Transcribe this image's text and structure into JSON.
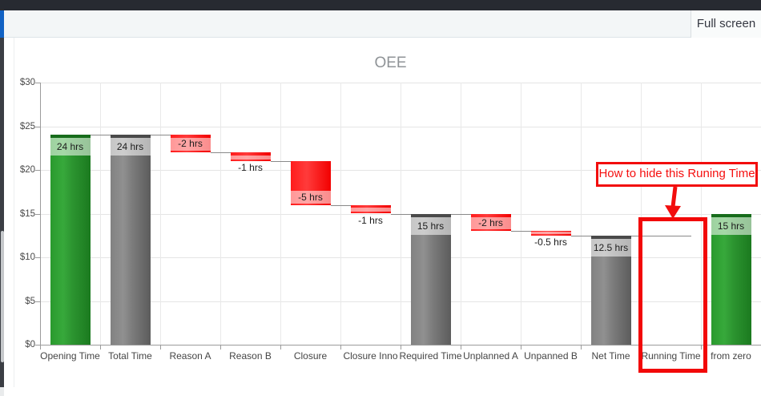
{
  "toolbar": {
    "full_screen_label": "Full screen"
  },
  "annotation": {
    "text": "How to hide this Runing Time"
  },
  "chart_data": {
    "type": "bar",
    "subtype": "waterfall",
    "title": "OEE",
    "xlabel": "",
    "ylabel": "",
    "ylim": [
      0,
      30
    ],
    "grid": true,
    "legend": "none",
    "yticks": [
      {
        "value": 0,
        "label": "$0"
      },
      {
        "value": 5,
        "label": "$5"
      },
      {
        "value": 10,
        "label": "$10"
      },
      {
        "value": 15,
        "label": "$15"
      },
      {
        "value": 20,
        "label": "$20"
      },
      {
        "value": 25,
        "label": "$25"
      },
      {
        "value": 30,
        "label": "$30"
      }
    ],
    "categories": [
      "Opening Time",
      "Total Time",
      "Reason A",
      "Reason B",
      "Closure",
      "Closure Inno",
      "Required Time",
      "Unplanned A",
      "Unpanned B",
      "Net Time",
      "Running Time",
      "from zero"
    ],
    "points": [
      {
        "name": "Opening Time",
        "from": 0,
        "to": 24,
        "color": "green",
        "data_label": "24 hrs",
        "label_placement": "inside",
        "connector_to_next": true
      },
      {
        "name": "Total Time",
        "from": 0,
        "to": 24,
        "color": "gray",
        "data_label": "24 hrs",
        "label_placement": "inside",
        "connector_to_next": true
      },
      {
        "name": "Reason A",
        "from": 24,
        "to": 22,
        "color": "red",
        "data_label": "-2 hrs",
        "label_placement": "inside",
        "connector_to_next": true
      },
      {
        "name": "Reason B",
        "from": 22,
        "to": 21,
        "color": "red",
        "data_label": "-1 hrs",
        "label_placement": "below",
        "connector_to_next": true
      },
      {
        "name": "Closure",
        "from": 21,
        "to": 16,
        "color": "red",
        "data_label": "-5 hrs",
        "label_placement": "inside",
        "connector_to_next": true
      },
      {
        "name": "Closure Inno",
        "from": 16,
        "to": 15,
        "color": "red",
        "data_label": "-1 hrs",
        "label_placement": "below",
        "connector_to_next": true
      },
      {
        "name": "Required Time",
        "from": 0,
        "to": 15,
        "color": "gray",
        "data_label": "15 hrs",
        "label_placement": "inside",
        "connector_to_next": true
      },
      {
        "name": "Unplanned A",
        "from": 15,
        "to": 13,
        "color": "red",
        "data_label": "-2 hrs",
        "label_placement": "inside",
        "connector_to_next": true
      },
      {
        "name": "Unpanned B",
        "from": 13,
        "to": 12.5,
        "color": "red",
        "data_label": "-0.5 hrs",
        "label_placement": "below",
        "connector_to_next": true
      },
      {
        "name": "Net Time",
        "from": 0,
        "to": 12.5,
        "color": "gray",
        "data_label": "12.5 hrs",
        "label_placement": "inside",
        "connector_to_next": true
      },
      {
        "name": "Running Time",
        "from": 12.5,
        "to": 12.5,
        "color": "none",
        "data_label": "",
        "label_placement": "none",
        "connector_to_next": false
      },
      {
        "name": "from zero",
        "from": 0,
        "to": 15,
        "color": "green",
        "data_label": "15 hrs",
        "label_placement": "inside",
        "connector_to_next": false
      }
    ],
    "colors": {
      "green": "#2e9d32",
      "gray": "#7f7f7f",
      "red": "#ff2a2a",
      "accent_blue": "#1262c4",
      "annotation_red": "#f20d0d"
    }
  }
}
